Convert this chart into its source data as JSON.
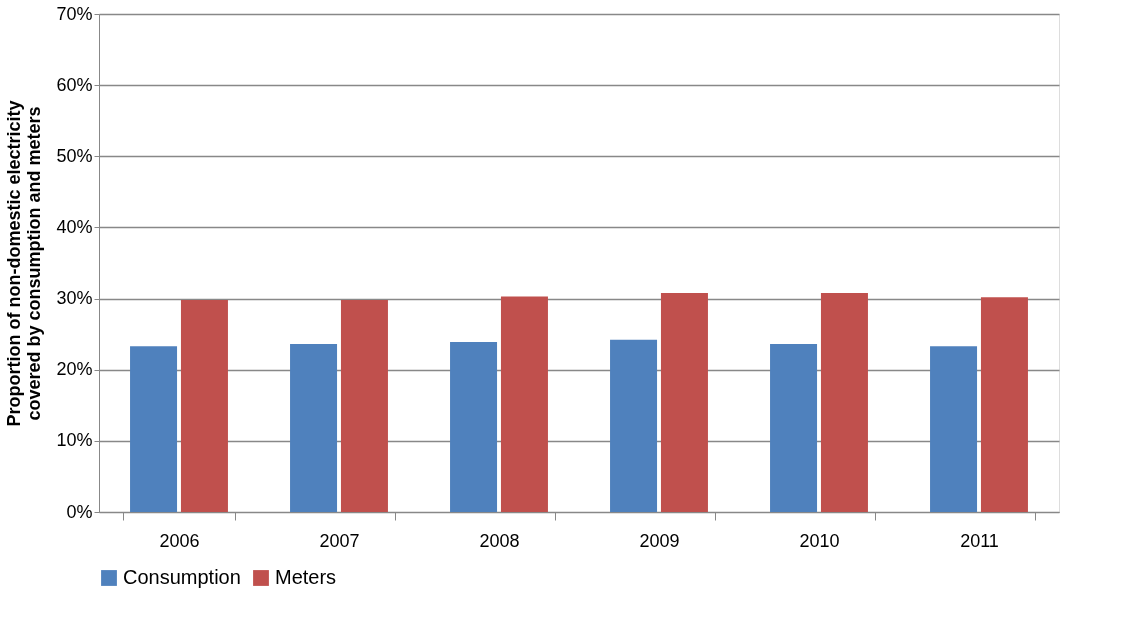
{
  "chart_data": {
    "type": "bar",
    "ylabel": "Proportion of non-domestic electricity\ncovered by consumption and meters",
    "categories": [
      "2006",
      "2007",
      "2008",
      "2009",
      "2010",
      "2011"
    ],
    "series": [
      {
        "name": "Consumption",
        "color": "#4f81bd",
        "values": [
          0.233,
          0.236,
          0.239,
          0.242,
          0.236,
          0.233
        ]
      },
      {
        "name": "Meters",
        "color": "#c0504d",
        "values": [
          0.298,
          0.298,
          0.303,
          0.308,
          0.308,
          0.302
        ]
      }
    ],
    "ylim": [
      0,
      0.7
    ],
    "yticks": [
      {
        "value": 0,
        "label": "0%"
      },
      {
        "value": 0.1,
        "label": "10%"
      },
      {
        "value": 0.2,
        "label": "20%"
      },
      {
        "value": 0.3,
        "label": "30%"
      },
      {
        "value": 0.4,
        "label": "40%"
      },
      {
        "value": 0.5,
        "label": "50%"
      },
      {
        "value": 0.6,
        "label": "60%"
      },
      {
        "value": 0.7,
        "label": "70%"
      }
    ],
    "grid": "y",
    "legend": "bottom"
  }
}
